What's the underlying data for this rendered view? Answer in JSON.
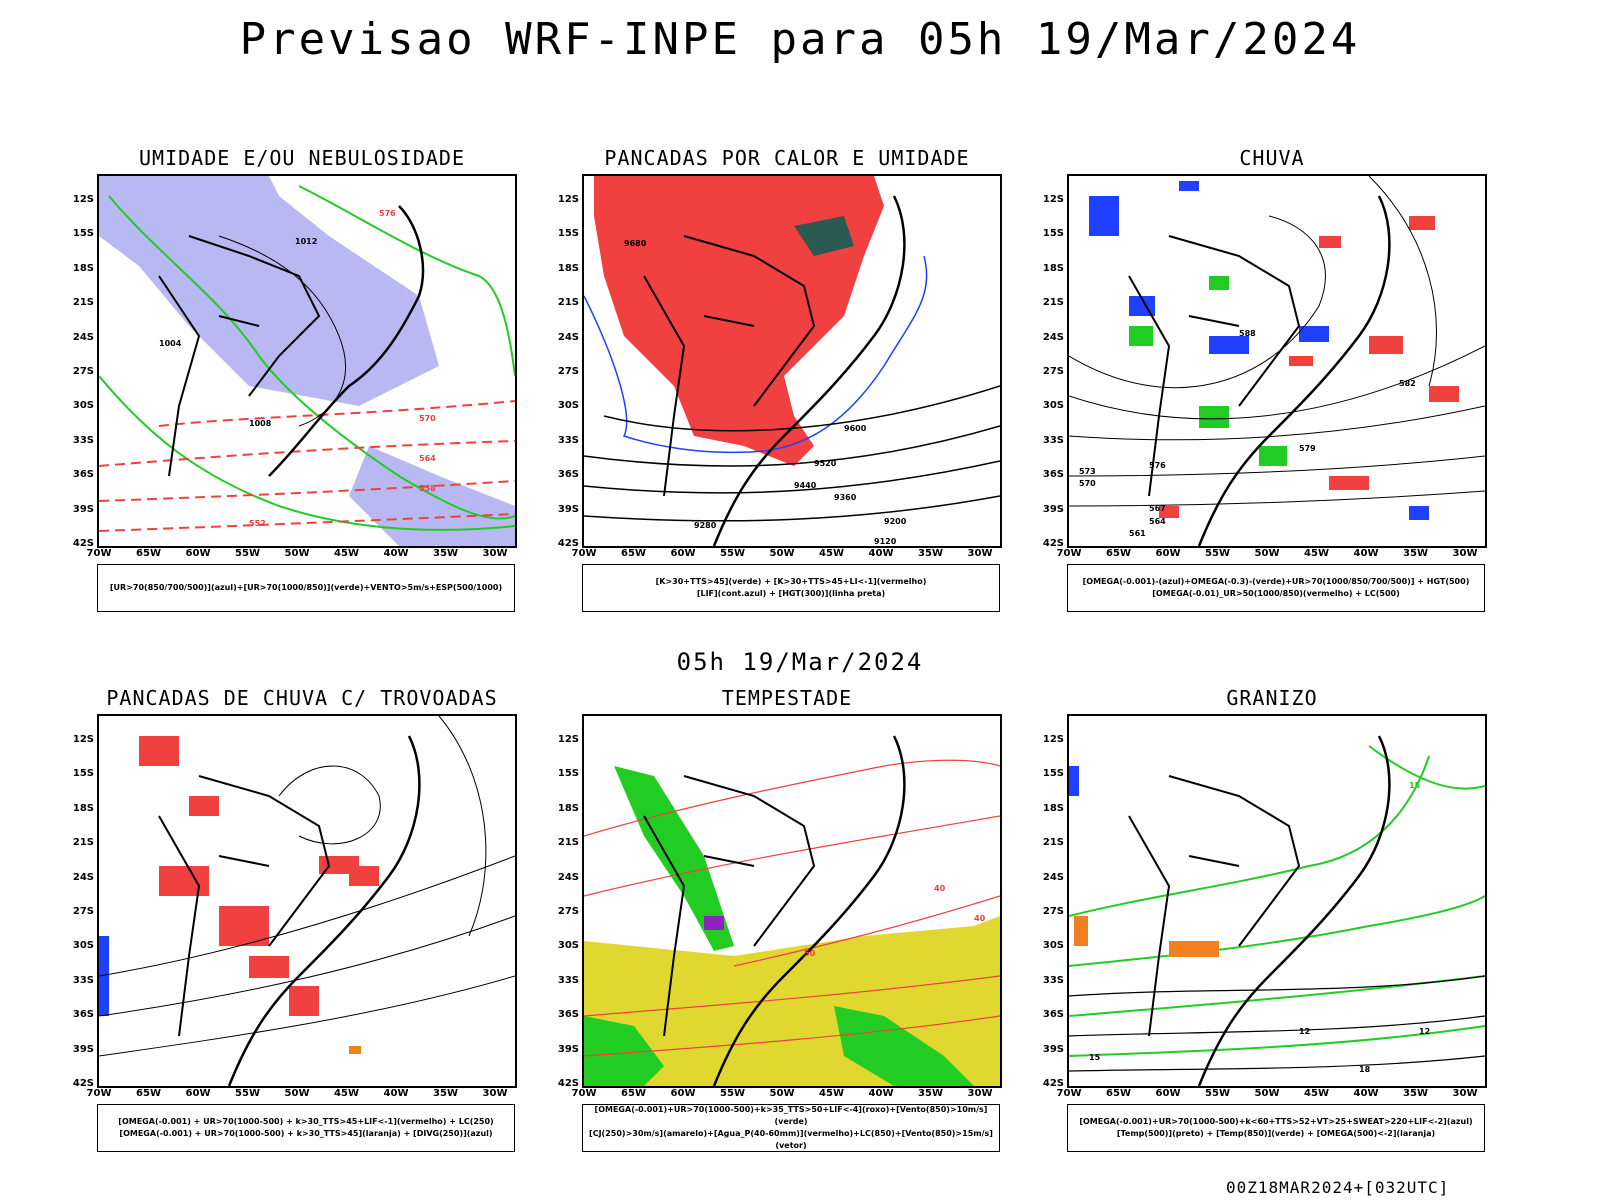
{
  "title": "Previsao WRF-INPE  para 05h 19/Mar/2024",
  "subtitle": "05h 19/Mar/2024",
  "footer": "00Z18MAR2024+[032UTC]",
  "axes": {
    "lat_labels": [
      "12S",
      "15S",
      "18S",
      "21S",
      "24S",
      "27S",
      "30S",
      "33S",
      "36S",
      "39S",
      "42S"
    ],
    "lon_labels": [
      "70W",
      "65W",
      "60W",
      "55W",
      "50W",
      "45W",
      "40W",
      "35W",
      "30W"
    ]
  },
  "colors": {
    "blue_fill": "#b8b8f2",
    "green": "#22cc22",
    "red": "#f04040",
    "dark_green": "#2a5a50",
    "blue": "#2040ff",
    "orange": "#f08020",
    "yellow": "#e0d830",
    "purple": "#9020c0"
  },
  "panels": [
    {
      "title": "UMIDADE E/OU NEBULOSIDADE",
      "legend_lines": [
        "[UR>70(850/700/500)](azul)+[UR>70(1000/850)](verde)+VENTO>5m/s+ESP(500/1000)"
      ],
      "contour_labels": [
        "1012",
        "1008",
        "1004",
        "576",
        "570",
        "564",
        "558",
        "552"
      ]
    },
    {
      "title": "PANCADAS POR CALOR E UMIDADE",
      "legend_lines": [
        "[K>30+TTS>45](verde) + [K>30+TTS>45+LI<-1](vermelho)",
        "[LIF](cont.azul) + [HGT(300)](linha preta)"
      ],
      "contour_labels": [
        "9680",
        "9600",
        "9520",
        "9440",
        "9360",
        "9280",
        "9200",
        "9120"
      ]
    },
    {
      "title": "CHUVA",
      "legend_lines": [
        "[OMEGA(-0.001)-(azul)+OMEGA(-0.3)-(verde)+UR>70(1000/850/700/500)] + HGT(500)",
        "[OMEGA(-0.01)_UR>50(1000/850)(vermelho) + LC(500)"
      ],
      "contour_labels": [
        "588",
        "582",
        "579",
        "576",
        "573",
        "570",
        "567",
        "564",
        "561"
      ]
    },
    {
      "title": "PANCADAS DE CHUVA C/ TROVOADAS",
      "legend_lines": [
        "[OMEGA(-0.001) + UR>70(1000-500) + k>30_TTS>45+LIF<-1](vermelho) + LC(250)",
        "[OMEGA(-0.001) + UR>70(1000-500) + k>30_TTS>45](laranja) + [DIVG(250)](azul)"
      ],
      "contour_labels": []
    },
    {
      "title": "TEMPESTADE",
      "legend_lines": [
        "[OMEGA(-0.001)+UR>70(1000-500)+k>35_TTS>50+LIF<-4](roxo)+[Vento(850)>10m/s](verde)",
        "[CJ(250)>30m/s](amarelo)+[Agua_P(40-60mm)](vermelho)+LC(850)+[Vento(850)>15m/s](vetor)"
      ],
      "contour_labels": [
        "40",
        "50",
        "40"
      ]
    },
    {
      "title": "GRANIZO",
      "legend_lines": [
        "[OMEGA(-0.001)+UR>70(1000-500)+k<60+TTS>52+VT>25+SWEAT>220+LIF<-2](azul)",
        "[Temp(500)](preto) + [Temp(850)](verde) + [OMEGA(500)<-2](laranja)"
      ],
      "contour_labels": [
        "15",
        "12",
        "12",
        "15",
        "18"
      ]
    }
  ]
}
